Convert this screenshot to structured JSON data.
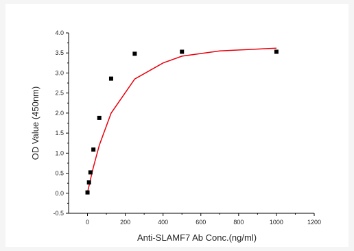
{
  "chart_data": {
    "type": "scatter",
    "xlabel": "Anti-SLAMF7 Ab Conc.(ng/ml)",
    "ylabel": "OD Value (450nm)",
    "xlim": [
      -100,
      1200
    ],
    "ylim": [
      -0.5,
      4.0
    ],
    "x_ticks": [
      0,
      200,
      400,
      600,
      800,
      1000,
      1200
    ],
    "y_ticks": [
      "-0.5",
      "0.0",
      "0.5",
      "1.0",
      "1.5",
      "2.0",
      "2.5",
      "3.0",
      "3.5",
      "4.0"
    ],
    "grid": false,
    "series": [
      {
        "kind": "points",
        "marker": "square",
        "color": "#000000",
        "x": [
          0,
          7.8,
          15.6,
          31.25,
          62.5,
          125,
          250,
          500,
          1000
        ],
        "y": [
          0.02,
          0.27,
          0.52,
          1.09,
          1.88,
          2.86,
          3.48,
          3.53,
          3.53
        ]
      },
      {
        "kind": "fitted_curve",
        "color": "#e8000b",
        "x": [
          0,
          7.8,
          15.6,
          31.25,
          62.5,
          125,
          250,
          400,
          500,
          700,
          1000
        ],
        "y": [
          0.02,
          0.18,
          0.34,
          0.65,
          1.2,
          2.0,
          2.85,
          3.25,
          3.42,
          3.55,
          3.62
        ]
      }
    ]
  }
}
